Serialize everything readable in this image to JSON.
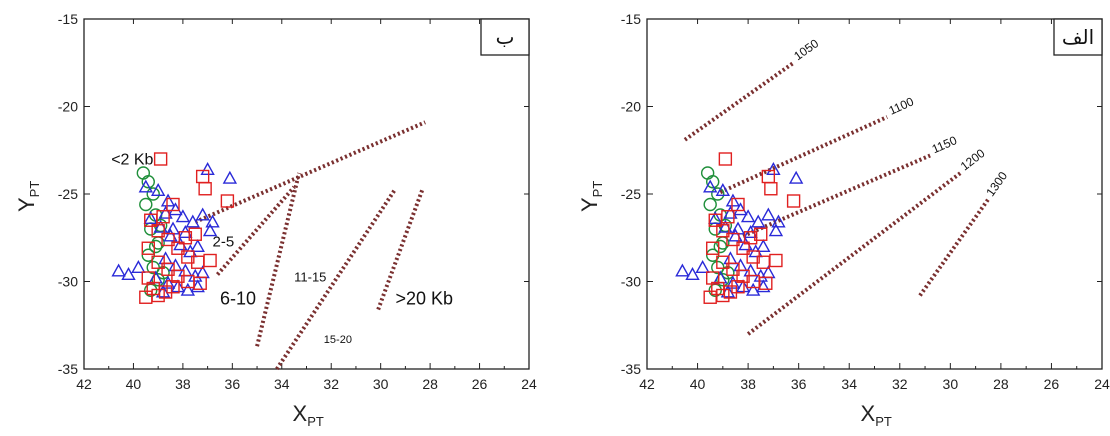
{
  "chart_data": [
    {
      "type": "scatter",
      "panel_label": "ب",
      "xlabel": "X",
      "xlabel_sub": "PT",
      "ylabel": "Y",
      "ylabel_sub": "PT",
      "xlim": [
        42,
        24
      ],
      "ylim": [
        -35,
        -15
      ],
      "xticks": [
        "42",
        "40",
        "38",
        "36",
        "34",
        "32",
        "30",
        "28",
        "26",
        "24"
      ],
      "yticks": [
        "-15",
        "-20",
        "-25",
        "-30",
        "-35"
      ],
      "markers": {
        "circle": "#1f8f3a",
        "triangle": "#2a2ad8",
        "square": "#e02020"
      },
      "series": [
        {
          "marker": "circle",
          "points": [
            [
              39.6,
              -23.8
            ],
            [
              39.4,
              -24.3
            ],
            [
              39.2,
              -25.0
            ],
            [
              39.5,
              -25.6
            ],
            [
              39.1,
              -26.2
            ],
            [
              39.3,
              -27.0
            ],
            [
              39.0,
              -27.8
            ],
            [
              39.4,
              -28.5
            ],
            [
              39.2,
              -29.2
            ],
            [
              39.0,
              -29.9
            ],
            [
              39.3,
              -30.5
            ],
            [
              38.9,
              -26.8
            ],
            [
              39.1,
              -28.0
            ],
            [
              38.8,
              -29.5
            ]
          ]
        },
        {
          "marker": "triangle",
          "points": [
            [
              40.6,
              -29.4
            ],
            [
              40.2,
              -29.6
            ],
            [
              39.8,
              -29.2
            ],
            [
              39.5,
              -24.6
            ],
            [
              39.0,
              -24.8
            ],
            [
              38.6,
              -25.4
            ],
            [
              38.3,
              -25.9
            ],
            [
              38.0,
              -26.3
            ],
            [
              37.6,
              -26.6
            ],
            [
              37.2,
              -26.2
            ],
            [
              36.8,
              -26.6
            ],
            [
              37.0,
              -23.6
            ],
            [
              36.1,
              -24.1
            ],
            [
              38.9,
              -26.9
            ],
            [
              38.5,
              -27.4
            ],
            [
              38.1,
              -27.9
            ],
            [
              37.7,
              -28.3
            ],
            [
              37.4,
              -28.0
            ],
            [
              38.7,
              -28.7
            ],
            [
              38.3,
              -29.1
            ],
            [
              37.9,
              -29.4
            ],
            [
              37.5,
              -29.7
            ],
            [
              39.1,
              -29.8
            ],
            [
              38.6,
              -30.1
            ],
            [
              38.2,
              -30.3
            ],
            [
              37.8,
              -30.5
            ],
            [
              37.4,
              -30.3
            ],
            [
              38.8,
              -30.6
            ],
            [
              38.4,
              -27.0
            ],
            [
              37.9,
              -27.2
            ],
            [
              39.3,
              -26.4
            ],
            [
              38.7,
              -26.1
            ],
            [
              37.2,
              -29.5
            ],
            [
              36.9,
              -27.1
            ]
          ]
        },
        {
          "marker": "square",
          "points": [
            [
              38.9,
              -23.0
            ],
            [
              37.2,
              -24.0
            ],
            [
              37.1,
              -24.7
            ],
            [
              36.2,
              -25.4
            ],
            [
              39.3,
              -26.5
            ],
            [
              39.0,
              -27.1
            ],
            [
              38.6,
              -27.6
            ],
            [
              38.2,
              -28.1
            ],
            [
              37.8,
              -28.6
            ],
            [
              37.4,
              -28.9
            ],
            [
              36.9,
              -28.8
            ],
            [
              39.4,
              -28.1
            ],
            [
              39.0,
              -28.9
            ],
            [
              38.6,
              -29.3
            ],
            [
              38.2,
              -29.7
            ],
            [
              37.8,
              -30.0
            ],
            [
              37.3,
              -30.1
            ],
            [
              39.4,
              -29.8
            ],
            [
              39.2,
              -30.4
            ],
            [
              39.0,
              -30.8
            ],
            [
              38.7,
              -30.6
            ],
            [
              38.4,
              -30.3
            ],
            [
              39.5,
              -30.9
            ],
            [
              38.8,
              -26.3
            ],
            [
              38.4,
              -25.6
            ],
            [
              37.9,
              -27.5
            ],
            [
              37.5,
              -27.3
            ]
          ]
        }
      ],
      "isolines": [
        {
          "label": "",
          "from": [
            37.5,
            -26.6
          ],
          "to": [
            28.2,
            -20.9
          ]
        },
        {
          "label": "",
          "from": [
            36.6,
            -29.6
          ],
          "to": [
            33.5,
            -24.6
          ]
        },
        {
          "label": "",
          "from": [
            35.0,
            -33.7
          ],
          "to": [
            33.3,
            -23.8
          ]
        },
        {
          "label": "",
          "from": [
            34.2,
            -35.0
          ],
          "to": [
            29.4,
            -24.7
          ]
        },
        {
          "label": "",
          "from": [
            30.1,
            -31.6
          ],
          "to": [
            28.3,
            -24.7
          ]
        }
      ],
      "annotations": [
        {
          "text": "<2 Kb",
          "x": 40.9,
          "y": -23.3
        },
        {
          "text": "2-5",
          "x": 36.8,
          "y": -28.0
        },
        {
          "text": "6-10",
          "x": 36.5,
          "y": -31.3
        },
        {
          "text": "11-15",
          "x": 33.5,
          "y": -30.0
        },
        {
          "text": "15-20",
          "x": 32.3,
          "y": -33.5
        },
        {
          "text": ">20 Kb",
          "x": 29.4,
          "y": -31.3
        }
      ]
    },
    {
      "type": "scatter",
      "panel_label": "الف",
      "xlabel": "X",
      "xlabel_sub": "PT",
      "ylabel": "Y",
      "ylabel_sub": "PT",
      "xlim": [
        42,
        24
      ],
      "ylim": [
        -35,
        -15
      ],
      "xticks": [
        "42",
        "40",
        "38",
        "36",
        "34",
        "32",
        "30",
        "28",
        "26",
        "24"
      ],
      "yticks": [
        "-15",
        "-20",
        "-25",
        "-30",
        "-35"
      ],
      "markers": {
        "circle": "#1f8f3a",
        "triangle": "#2a2ad8",
        "square": "#e02020"
      },
      "series": [
        {
          "marker": "circle",
          "points": [
            [
              39.6,
              -23.8
            ],
            [
              39.4,
              -24.3
            ],
            [
              39.2,
              -25.0
            ],
            [
              39.5,
              -25.6
            ],
            [
              39.1,
              -26.2
            ],
            [
              39.3,
              -27.0
            ],
            [
              39.0,
              -27.8
            ],
            [
              39.4,
              -28.5
            ],
            [
              39.2,
              -29.2
            ],
            [
              39.0,
              -29.9
            ],
            [
              39.3,
              -30.5
            ],
            [
              38.9,
              -26.8
            ],
            [
              39.1,
              -28.0
            ],
            [
              38.8,
              -29.5
            ]
          ]
        },
        {
          "marker": "triangle",
          "points": [
            [
              40.6,
              -29.4
            ],
            [
              40.2,
              -29.6
            ],
            [
              39.8,
              -29.2
            ],
            [
              39.5,
              -24.6
            ],
            [
              39.0,
              -24.8
            ],
            [
              38.6,
              -25.4
            ],
            [
              38.3,
              -25.9
            ],
            [
              38.0,
              -26.3
            ],
            [
              37.6,
              -26.6
            ],
            [
              37.2,
              -26.2
            ],
            [
              36.8,
              -26.6
            ],
            [
              37.0,
              -23.6
            ],
            [
              36.1,
              -24.1
            ],
            [
              38.9,
              -26.9
            ],
            [
              38.5,
              -27.4
            ],
            [
              38.1,
              -27.9
            ],
            [
              37.7,
              -28.3
            ],
            [
              37.4,
              -28.0
            ],
            [
              38.7,
              -28.7
            ],
            [
              38.3,
              -29.1
            ],
            [
              37.9,
              -29.4
            ],
            [
              37.5,
              -29.7
            ],
            [
              39.1,
              -29.8
            ],
            [
              38.6,
              -30.1
            ],
            [
              38.2,
              -30.3
            ],
            [
              37.8,
              -30.5
            ],
            [
              37.4,
              -30.3
            ],
            [
              38.8,
              -30.6
            ],
            [
              38.4,
              -27.0
            ],
            [
              37.9,
              -27.2
            ],
            [
              39.3,
              -26.4
            ],
            [
              38.7,
              -26.1
            ],
            [
              37.2,
              -29.5
            ],
            [
              36.9,
              -27.1
            ]
          ]
        },
        {
          "marker": "square",
          "points": [
            [
              38.9,
              -23.0
            ],
            [
              37.2,
              -24.0
            ],
            [
              37.1,
              -24.7
            ],
            [
              36.2,
              -25.4
            ],
            [
              39.3,
              -26.5
            ],
            [
              39.0,
              -27.1
            ],
            [
              38.6,
              -27.6
            ],
            [
              38.2,
              -28.1
            ],
            [
              37.8,
              -28.6
            ],
            [
              37.4,
              -28.9
            ],
            [
              36.9,
              -28.8
            ],
            [
              39.4,
              -28.1
            ],
            [
              39.0,
              -28.9
            ],
            [
              38.6,
              -29.3
            ],
            [
              38.2,
              -29.7
            ],
            [
              37.8,
              -30.0
            ],
            [
              37.3,
              -30.1
            ],
            [
              39.4,
              -29.8
            ],
            [
              39.2,
              -30.4
            ],
            [
              39.0,
              -30.8
            ],
            [
              38.7,
              -30.6
            ],
            [
              38.4,
              -30.3
            ],
            [
              39.5,
              -30.9
            ],
            [
              38.8,
              -26.3
            ],
            [
              38.4,
              -25.6
            ],
            [
              37.9,
              -27.5
            ],
            [
              37.5,
              -27.3
            ]
          ]
        }
      ],
      "isolines": [
        {
          "label": "1050",
          "from": [
            40.5,
            -21.9
          ],
          "to": [
            36.2,
            -17.5
          ]
        },
        {
          "label": "1100",
          "from": [
            39.1,
            -24.9
          ],
          "to": [
            32.5,
            -20.6
          ]
        },
        {
          "label": "1150",
          "from": [
            38.2,
            -27.4
          ],
          "to": [
            30.8,
            -22.8
          ]
        },
        {
          "label": "1200",
          "from": [
            38.0,
            -33.0
          ],
          "to": [
            29.6,
            -23.8
          ]
        },
        {
          "label": "1300",
          "from": [
            31.2,
            -30.8
          ],
          "to": [
            28.5,
            -25.3
          ]
        }
      ],
      "annotations": []
    }
  ]
}
